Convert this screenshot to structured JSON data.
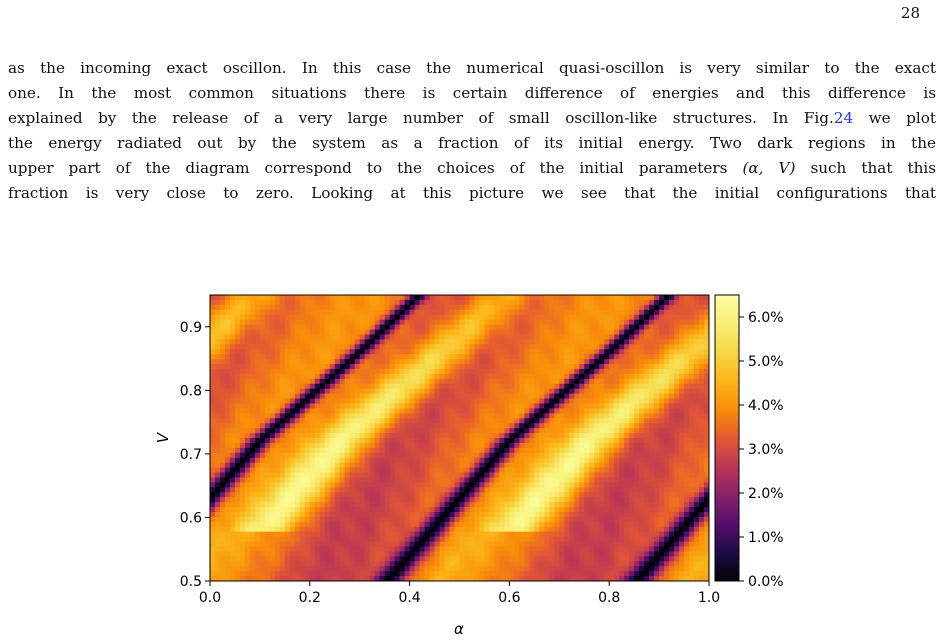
{
  "page": {
    "number": "28"
  },
  "paragraph": {
    "lines": [
      "as the incoming exact oscillon. In this case the numerical quasi-oscillon is very similar to the exact",
      "one. In the most common situations there is certain difference of energies and this difference is",
      "explained by the release of a very large number of small oscillon-like structures. In Fig.",
      "the energy radiated out by the system as a fraction of its initial energy. Two dark regions in the",
      "upper part of the diagram correspond to the choices of the initial parameters ",
      "fraction is very close to zero. Looking at this picture we see that the initial configurations that"
    ],
    "fig_ref": "24",
    "line3_tail": " we plot",
    "params": "(α, V)",
    "line5_tail": " such that this"
  },
  "chart_data": {
    "type": "heatmap",
    "title": "",
    "xlabel": "α",
    "ylabel": "V",
    "xlim": [
      0.0,
      1.0
    ],
    "ylim": [
      0.5,
      0.95
    ],
    "x_ticks": [
      "0.0",
      "0.2",
      "0.4",
      "0.6",
      "0.8",
      "1.0"
    ],
    "y_ticks": [
      "0.5",
      "0.6",
      "0.7",
      "0.8",
      "0.9"
    ],
    "colorbar": {
      "range": [
        0.0,
        6.5
      ],
      "unit": "%",
      "ticks": [
        "0.0%",
        "1.0%",
        "2.0%",
        "3.0%",
        "4.0%",
        "5.0%",
        "6.0%"
      ],
      "colormap": "inferno"
    },
    "dark_valley": {
      "description_points": [
        [
          0.0,
          0.63
        ],
        [
          0.1,
          0.72
        ],
        [
          0.2,
          0.79
        ],
        [
          0.3,
          0.86
        ],
        [
          0.42,
          0.95
        ]
      ],
      "period_alpha": 0.5
    }
  }
}
